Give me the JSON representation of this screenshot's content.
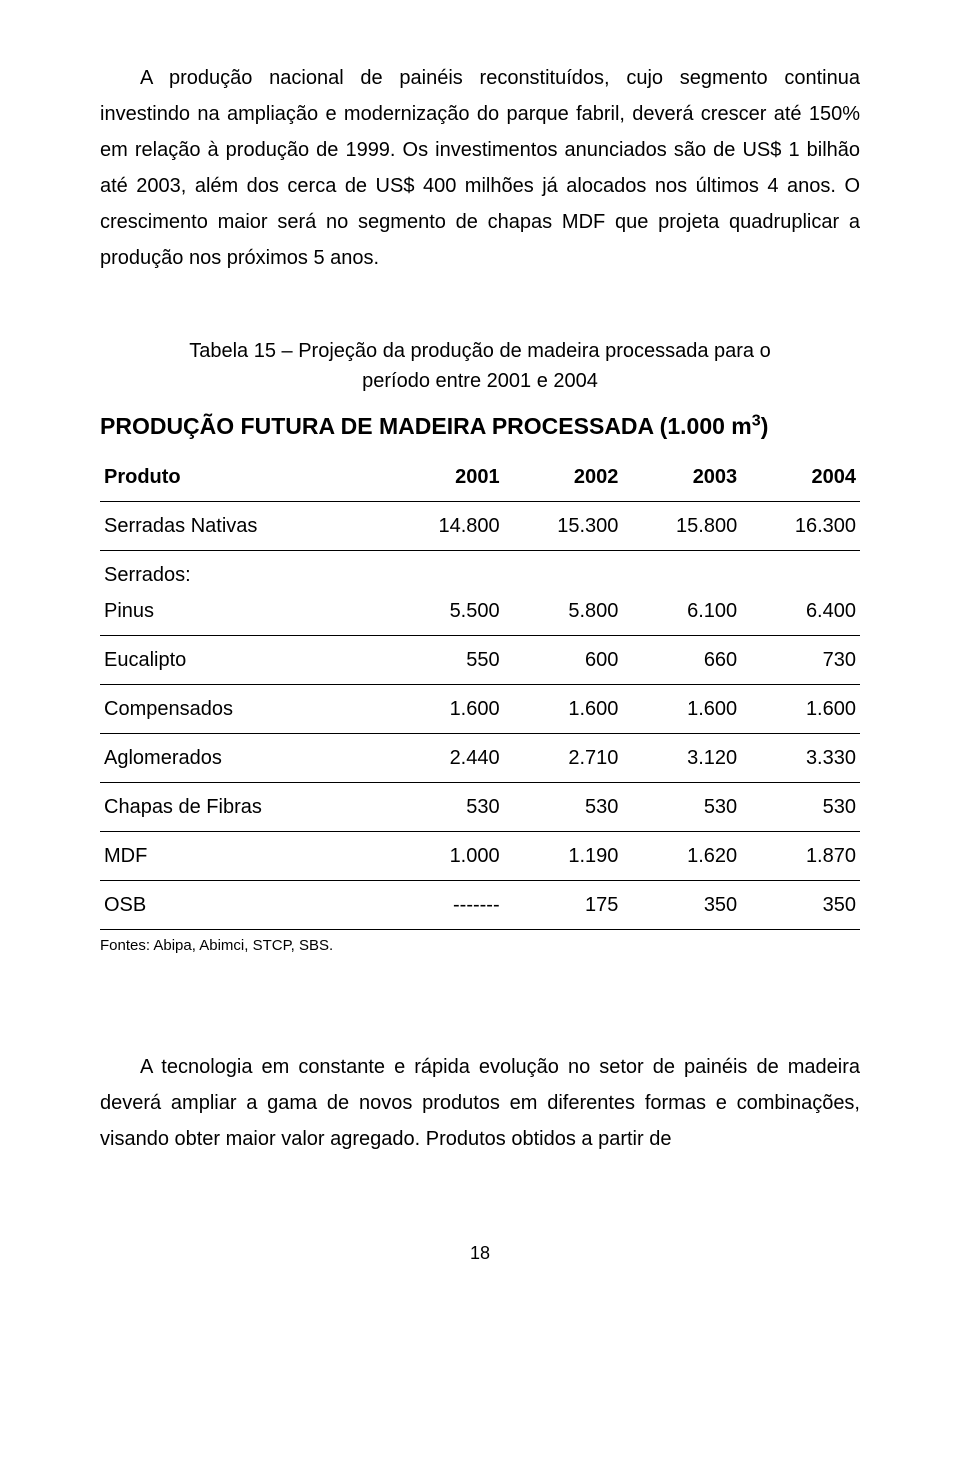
{
  "paragraph1": "A produção nacional de painéis reconstituídos, cujo segmento continua investindo na ampliação e modernização do parque fabril, deverá crescer até 150% em relação à produção de 1999. Os investimentos anunciados são de US$ 1 bilhão até 2003, além dos cerca de US$ 400 milhões já alocados nos últimos 4 anos. O crescimento maior será no segmento de chapas MDF que projeta quadruplicar a produção nos próximos 5 anos.",
  "caption_line1": "Tabela 15 – Projeção da produção de madeira processada para o",
  "caption_line2": "período entre 2001 e 2004",
  "table_title_main": "PRODUÇÃO FUTURA DE MADEIRA PROCESSADA",
  "table_title_unit": " (1.000 m",
  "table_title_sup": "3",
  "table_title_close": ")",
  "table": {
    "columns": [
      "Produto",
      "2001",
      "2002",
      "2003",
      "2004"
    ],
    "rows": [
      {
        "label": "Serradas Nativas",
        "v": [
          "14.800",
          "15.300",
          "15.800",
          "16.300"
        ]
      },
      {
        "label": "Serrados:",
        "sublabel": "Pinus",
        "v": [
          "5.500",
          "5.800",
          "6.100",
          "6.400"
        ],
        "twoLine": true
      },
      {
        "label": "Eucalipto",
        "v": [
          "550",
          "600",
          "660",
          "730"
        ]
      },
      {
        "label": "Compensados",
        "v": [
          "1.600",
          "1.600",
          "1.600",
          "1.600"
        ]
      },
      {
        "label": " Aglomerados",
        "v": [
          "2.440",
          "2.710",
          "3.120",
          "3.330"
        ]
      },
      {
        "label": "Chapas de Fibras",
        "v": [
          "530",
          "530",
          "530",
          "530"
        ]
      },
      {
        "label": "MDF",
        "v": [
          "1.000",
          "1.190",
          "1.620",
          "1.870"
        ]
      },
      {
        "label": "OSB",
        "v": [
          "-------",
          "175",
          "350",
          "350"
        ]
      }
    ]
  },
  "sources": "Fontes: Abipa, Abimci, STCP, SBS.",
  "paragraph2": "A tecnologia em constante e rápida evolução no setor de painéis de madeira deverá ampliar a gama de novos produtos em diferentes formas e combinações, visando obter maior valor agregado. Produtos obtidos a partir de",
  "pagenum": "18"
}
